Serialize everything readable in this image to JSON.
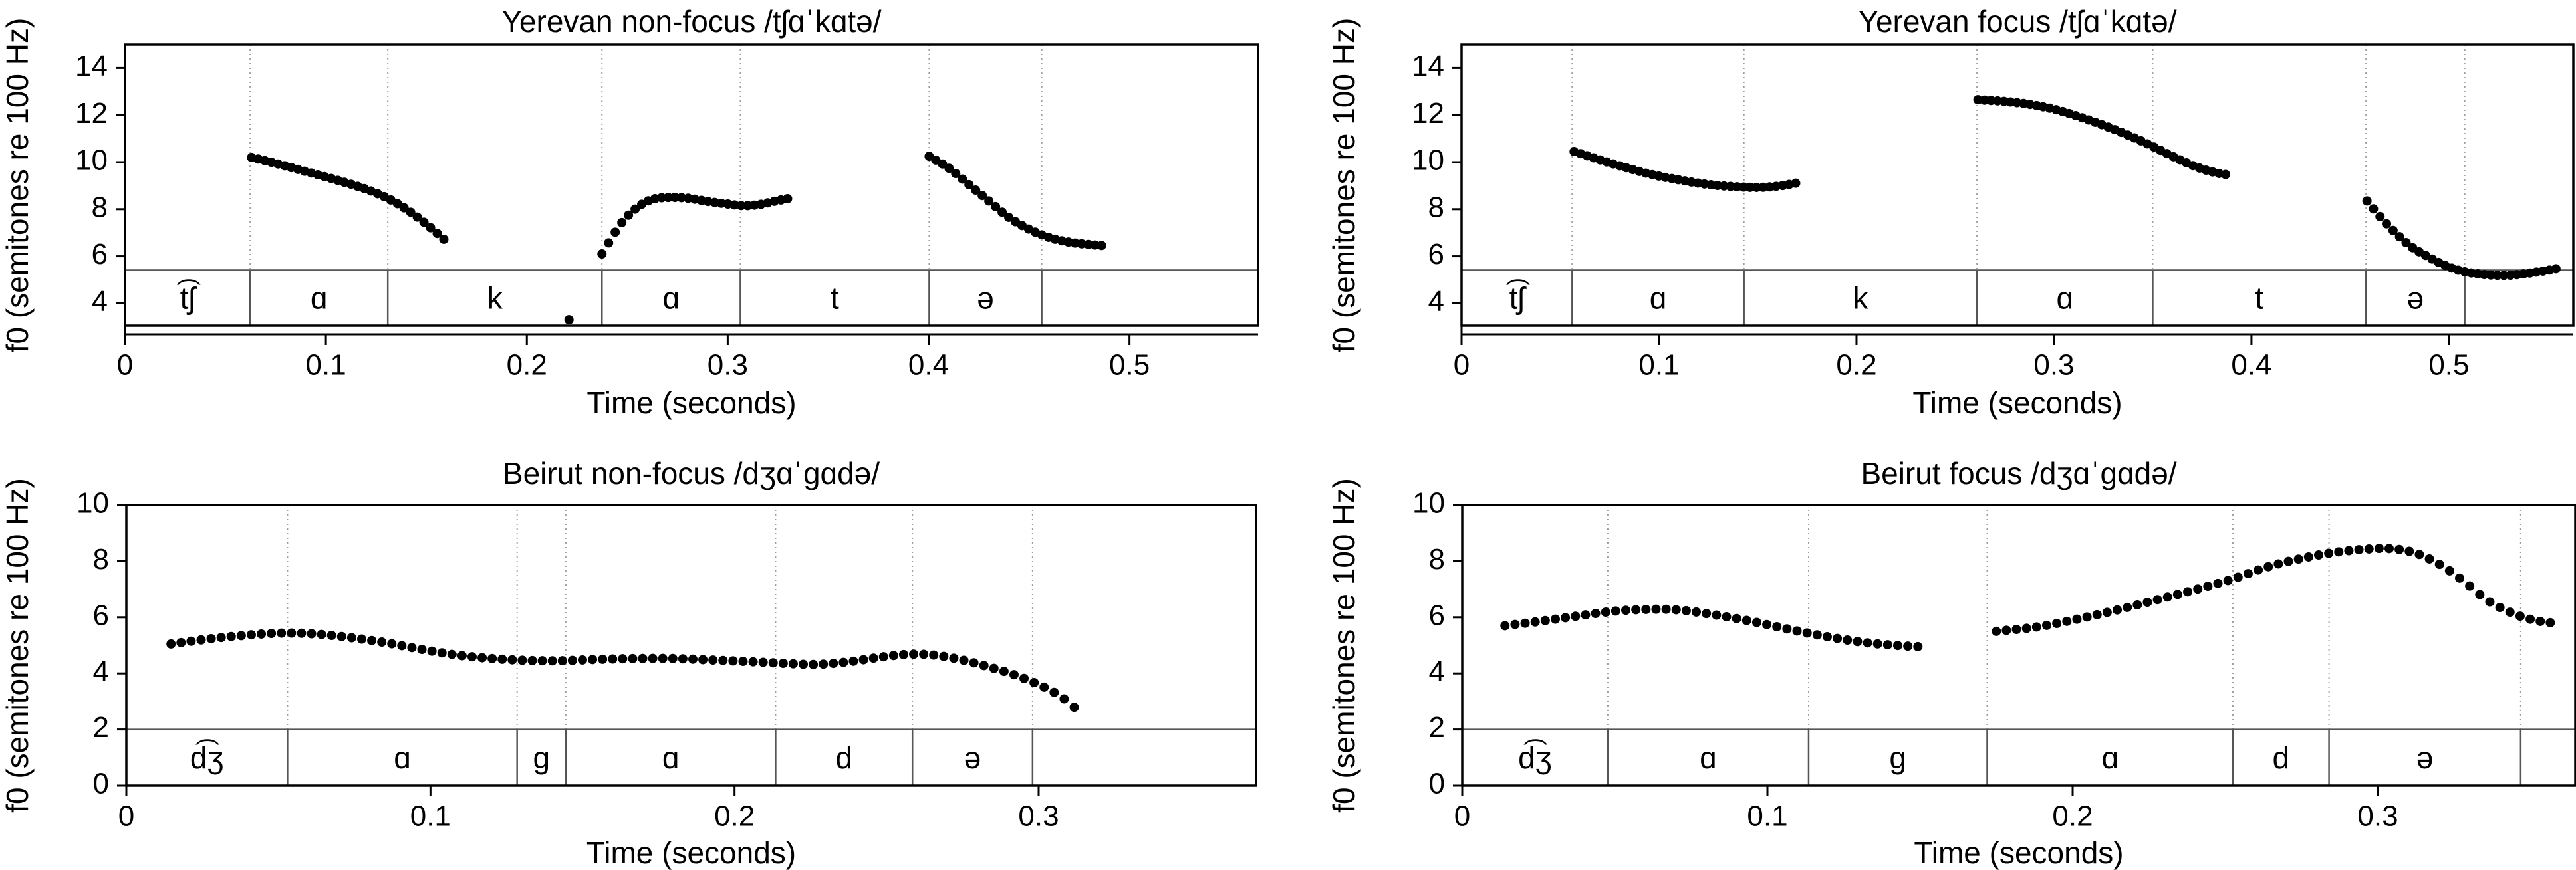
{
  "page": {
    "background": "#ffffff"
  },
  "chart_data": [
    {
      "type": "scatter",
      "panel_id": "yerevan-nonfocus",
      "title": "Yerevan non-focus /tʃɑˈkɑtə/",
      "xlabel": "Time (seconds)",
      "ylabel": "f0 (semitones re 100 Hz)",
      "xlim": [
        0,
        0.564
      ],
      "ylim": [
        3.05,
        15.0
      ],
      "xticks": [
        0,
        0.1,
        0.2,
        0.3,
        0.4,
        0.5
      ],
      "xtick_labels": [
        "0",
        "0.1",
        "0.2",
        "0.3",
        "0.4",
        "0.5"
      ],
      "yticks": [
        4,
        6,
        8,
        10,
        12,
        14
      ],
      "ytick_labels": [
        "4",
        "6",
        "8",
        "10",
        "12",
        "14"
      ],
      "grid": "segment-boundaries-dotted",
      "tier_top_value": 5.41,
      "segments": [
        {
          "label": "t͡ʃ",
          "start": 0,
          "end": 0.0623
        },
        {
          "label": "ɑ",
          "start": 0.0623,
          "end": 0.1308
        },
        {
          "label": "k",
          "start": 0.1308,
          "end": 0.2374
        },
        {
          "label": "ɑ",
          "start": 0.2374,
          "end": 0.3063
        },
        {
          "label": "t",
          "start": 0.3063,
          "end": 0.4003
        },
        {
          "label": "ə",
          "start": 0.4003,
          "end": 0.4563
        },
        {
          "label": "",
          "start": 0.4563,
          "end": 0.564
        }
      ],
      "dot_spacing_s": 0.0033,
      "marker": {
        "radius_px": 7,
        "color": "#000000"
      },
      "f0_chunks_st": [
        [
          [
            0.063,
            10.2
          ],
          [
            0.075,
            9.95
          ],
          [
            0.09,
            9.6
          ],
          [
            0.105,
            9.25
          ],
          [
            0.12,
            8.85
          ],
          [
            0.131,
            8.45
          ],
          [
            0.14,
            8.0
          ],
          [
            0.148,
            7.5
          ],
          [
            0.155,
            7.0
          ],
          [
            0.161,
            6.55
          ]
        ],
        [
          [
            0.2374,
            6.1
          ],
          [
            0.242,
            6.75
          ],
          [
            0.247,
            7.4
          ],
          [
            0.2525,
            7.9
          ],
          [
            0.258,
            8.25
          ],
          [
            0.264,
            8.45
          ],
          [
            0.272,
            8.5
          ],
          [
            0.28,
            8.47
          ],
          [
            0.29,
            8.33
          ],
          [
            0.3,
            8.22
          ],
          [
            0.308,
            8.15
          ],
          [
            0.316,
            8.2
          ],
          [
            0.324,
            8.35
          ],
          [
            0.33,
            8.45
          ]
        ],
        [
          [
            0.4003,
            10.25
          ],
          [
            0.41,
            9.75
          ],
          [
            0.42,
            9.05
          ],
          [
            0.43,
            8.35
          ],
          [
            0.44,
            7.65
          ],
          [
            0.45,
            7.15
          ],
          [
            0.46,
            6.8
          ],
          [
            0.47,
            6.6
          ],
          [
            0.48,
            6.5
          ],
          [
            0.4875,
            6.45
          ]
        ],
        [
          [
            0.221,
            3.3
          ]
        ]
      ]
    },
    {
      "type": "scatter",
      "panel_id": "yerevan-focus",
      "title": "Yerevan focus /tʃɑˈkɑtə/",
      "xlabel": "Time (seconds)",
      "ylabel": "f0 (semitones re 100 Hz)",
      "xlim": [
        0,
        0.563
      ],
      "ylim": [
        3.05,
        15.0
      ],
      "xticks": [
        0,
        0.1,
        0.2,
        0.3,
        0.4,
        0.5
      ],
      "xtick_labels": [
        "0",
        "0.1",
        "0.2",
        "0.3",
        "0.4",
        "0.5"
      ],
      "yticks": [
        4,
        6,
        8,
        10,
        12,
        14
      ],
      "ytick_labels": [
        "4",
        "6",
        "8",
        "10",
        "12",
        "14"
      ],
      "grid": "segment-boundaries-dotted",
      "tier_top_value": 5.41,
      "segments": [
        {
          "label": "t͡ʃ",
          "start": 0,
          "end": 0.056
        },
        {
          "label": "ɑ",
          "start": 0.056,
          "end": 0.143
        },
        {
          "label": "k",
          "start": 0.143,
          "end": 0.261
        },
        {
          "label": "ɑ",
          "start": 0.261,
          "end": 0.35
        },
        {
          "label": "t",
          "start": 0.35,
          "end": 0.458
        },
        {
          "label": "ə",
          "start": 0.458,
          "end": 0.508
        },
        {
          "label": "",
          "start": 0.508,
          "end": 0.563
        }
      ],
      "dot_spacing_s": 0.0033,
      "marker": {
        "radius_px": 7,
        "color": "#000000"
      },
      "f0_chunks_st": [
        [
          [
            0.057,
            10.45
          ],
          [
            0.07,
            10.1
          ],
          [
            0.082,
            9.8
          ],
          [
            0.095,
            9.5
          ],
          [
            0.11,
            9.25
          ],
          [
            0.125,
            9.05
          ],
          [
            0.14,
            8.95
          ],
          [
            0.152,
            8.93
          ],
          [
            0.162,
            9.0
          ],
          [
            0.172,
            9.15
          ]
        ],
        [
          [
            0.2615,
            12.65
          ],
          [
            0.275,
            12.58
          ],
          [
            0.288,
            12.45
          ],
          [
            0.3,
            12.25
          ],
          [
            0.312,
            11.95
          ],
          [
            0.324,
            11.6
          ],
          [
            0.336,
            11.2
          ],
          [
            0.348,
            10.75
          ],
          [
            0.36,
            10.25
          ],
          [
            0.372,
            9.8
          ],
          [
            0.382,
            9.55
          ],
          [
            0.389,
            9.45
          ]
        ],
        [
          [
            0.4585,
            8.35
          ],
          [
            0.466,
            7.6
          ],
          [
            0.4735,
            6.95
          ],
          [
            0.481,
            6.4
          ],
          [
            0.489,
            6.0
          ],
          [
            0.497,
            5.65
          ],
          [
            0.505,
            5.4
          ],
          [
            0.513,
            5.27
          ],
          [
            0.522,
            5.2
          ],
          [
            0.532,
            5.2
          ],
          [
            0.542,
            5.3
          ],
          [
            0.55,
            5.4
          ],
          [
            0.556,
            5.5
          ]
        ]
      ]
    },
    {
      "type": "scatter",
      "panel_id": "beirut-nonfocus",
      "title": "Beirut non-focus /dʒɑˈgɑdə/",
      "xlabel": "Time (seconds)",
      "ylabel": "f0 (semitones re 100 Hz)",
      "xlim": [
        0,
        0.3715
      ],
      "ylim": [
        0,
        10
      ],
      "xticks": [
        0,
        0.1,
        0.2,
        0.3
      ],
      "xtick_labels": [
        "0",
        "0.1",
        "0.2",
        "0.3"
      ],
      "yticks": [
        0,
        2,
        4,
        6,
        8,
        10
      ],
      "ytick_labels": [
        "0",
        "2",
        "4",
        "6",
        "8",
        "10"
      ],
      "grid": "segment-boundaries-dotted",
      "tier_top_value": 2.0,
      "segments": [
        {
          "label": "d͡ʒ",
          "start": 0,
          "end": 0.053
        },
        {
          "label": "ɑ",
          "start": 0.053,
          "end": 0.1285
        },
        {
          "label": "g",
          "start": 0.1285,
          "end": 0.1445
        },
        {
          "label": "ɑ",
          "start": 0.1445,
          "end": 0.2135
        },
        {
          "label": "d",
          "start": 0.2135,
          "end": 0.2585
        },
        {
          "label": "ə",
          "start": 0.2585,
          "end": 0.298
        },
        {
          "label": "",
          "start": 0.298,
          "end": 0.3715
        }
      ],
      "dot_spacing_s": 0.0033,
      "marker": {
        "radius_px": 7,
        "color": "#000000"
      },
      "f0_chunks_st": [
        [
          [
            0.0147,
            5.05
          ],
          [
            0.025,
            5.2
          ],
          [
            0.035,
            5.32
          ],
          [
            0.049,
            5.43
          ],
          [
            0.06,
            5.42
          ],
          [
            0.072,
            5.3
          ],
          [
            0.085,
            5.1
          ],
          [
            0.095,
            4.9
          ],
          [
            0.107,
            4.68
          ],
          [
            0.118,
            4.55
          ],
          [
            0.13,
            4.47
          ],
          [
            0.142,
            4.45
          ],
          [
            0.155,
            4.5
          ],
          [
            0.168,
            4.53
          ],
          [
            0.18,
            4.53
          ],
          [
            0.192,
            4.48
          ],
          [
            0.205,
            4.42
          ],
          [
            0.218,
            4.35
          ],
          [
            0.227,
            4.32
          ],
          [
            0.238,
            4.42
          ],
          [
            0.248,
            4.58
          ],
          [
            0.257,
            4.68
          ],
          [
            0.265,
            4.66
          ],
          [
            0.274,
            4.5
          ],
          [
            0.283,
            4.25
          ],
          [
            0.292,
            3.95
          ],
          [
            0.3,
            3.6
          ],
          [
            0.307,
            3.2
          ],
          [
            0.3125,
            2.72
          ]
        ]
      ]
    },
    {
      "type": "scatter",
      "panel_id": "beirut-focus",
      "title": "Beirut focus /dʒɑˈgɑdə/",
      "xlabel": "Time (seconds)",
      "ylabel": "f0 (semitones re 100 Hz)",
      "xlim": [
        0,
        0.3647
      ],
      "ylim": [
        0,
        10
      ],
      "xticks": [
        0,
        0.1,
        0.2,
        0.3
      ],
      "xtick_labels": [
        "0",
        "0.1",
        "0.2",
        "0.3"
      ],
      "yticks": [
        0,
        2,
        4,
        6,
        8,
        10
      ],
      "ytick_labels": [
        "0",
        "2",
        "4",
        "6",
        "8",
        "10"
      ],
      "grid": "segment-boundaries-dotted",
      "tier_top_value": 2.0,
      "segments": [
        {
          "label": "d͡ʒ",
          "start": 0,
          "end": 0.0477
        },
        {
          "label": "ɑ",
          "start": 0.0477,
          "end": 0.1135
        },
        {
          "label": "g",
          "start": 0.1135,
          "end": 0.172
        },
        {
          "label": "ɑ",
          "start": 0.172,
          "end": 0.2525
        },
        {
          "label": "d",
          "start": 0.2525,
          "end": 0.284
        },
        {
          "label": "ə",
          "start": 0.284,
          "end": 0.3468
        },
        {
          "label": "",
          "start": 0.3468,
          "end": 0.3647
        }
      ],
      "dot_spacing_s": 0.0033,
      "marker": {
        "radius_px": 7,
        "color": "#000000"
      },
      "f0_chunks_st": [
        [
          [
            0.014,
            5.7
          ],
          [
            0.025,
            5.85
          ],
          [
            0.038,
            6.05
          ],
          [
            0.05,
            6.22
          ],
          [
            0.06,
            6.28
          ],
          [
            0.07,
            6.27
          ],
          [
            0.082,
            6.1
          ],
          [
            0.095,
            5.85
          ],
          [
            0.108,
            5.55
          ],
          [
            0.12,
            5.3
          ],
          [
            0.132,
            5.1
          ],
          [
            0.142,
            5.0
          ],
          [
            0.15,
            4.95
          ]
        ],
        [
          [
            0.175,
            5.5
          ],
          [
            0.188,
            5.65
          ],
          [
            0.2,
            5.9
          ],
          [
            0.213,
            6.22
          ],
          [
            0.226,
            6.58
          ],
          [
            0.239,
            6.95
          ],
          [
            0.252,
            7.35
          ],
          [
            0.264,
            7.8
          ],
          [
            0.275,
            8.1
          ],
          [
            0.285,
            8.3
          ],
          [
            0.295,
            8.42
          ],
          [
            0.304,
            8.45
          ],
          [
            0.312,
            8.3
          ],
          [
            0.32,
            7.9
          ],
          [
            0.328,
            7.3
          ],
          [
            0.336,
            6.6
          ],
          [
            0.344,
            6.15
          ],
          [
            0.351,
            5.9
          ],
          [
            0.357,
            5.8
          ]
        ]
      ]
    }
  ],
  "style": {
    "frame_color": "#000000",
    "tier_line_color": "#555555",
    "boundary_dotted_color": "#a0a0a0",
    "boundary_solid_color": "#555555",
    "dot_color": "#000000"
  }
}
